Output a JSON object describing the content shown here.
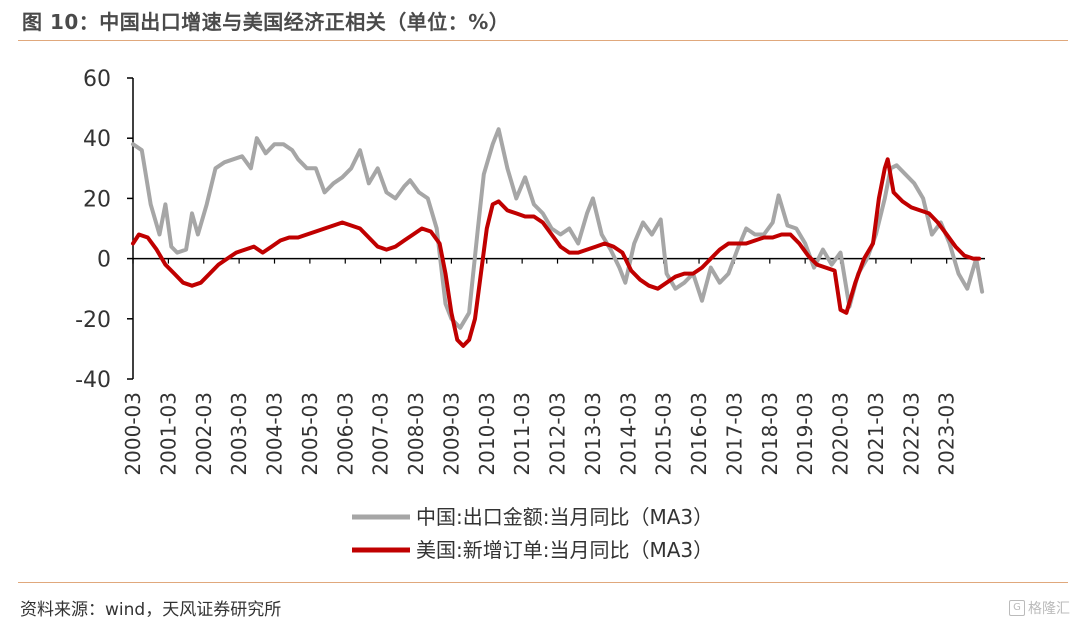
{
  "header": {
    "title": "图 10：中国出口增速与美国经济正相关（单位：%）"
  },
  "footer": {
    "source": "资料来源：wind，天风证券研究所",
    "watermark": "格隆汇",
    "watermark_icon": "G"
  },
  "colors": {
    "china": "#a6a6a6",
    "us": "#c00000",
    "rule": "#e0a87c"
  },
  "chart_data": {
    "type": "line",
    "x_type": "monthly",
    "x_start": "2000-03",
    "ylim": [
      -40,
      60
    ],
    "yticks": [
      "60",
      "40",
      "20",
      "0",
      "-20",
      "-40"
    ],
    "xticks": [
      "2000-03",
      "2001-03",
      "2002-03",
      "2003-03",
      "2004-03",
      "2005-03",
      "2006-03",
      "2007-03",
      "2008-03",
      "2009-03",
      "2010-03",
      "2011-03",
      "2012-03",
      "2013-03",
      "2014-03",
      "2015-03",
      "2016-03",
      "2017-03",
      "2018-03",
      "2019-03",
      "2020-03",
      "2021-03",
      "2022-03",
      "2023-03"
    ],
    "legend_position": "bottom",
    "series": [
      {
        "name": "中国:出口金额:当月同比（MA3）",
        "color": "#a6a6a6",
        "values": [
          [
            0,
            38
          ],
          [
            3,
            36
          ],
          [
            6,
            18
          ],
          [
            9,
            8
          ],
          [
            11,
            18
          ],
          [
            13,
            4
          ],
          [
            15,
            2
          ],
          [
            18,
            3
          ],
          [
            20,
            15
          ],
          [
            22,
            8
          ],
          [
            25,
            18
          ],
          [
            28,
            30
          ],
          [
            31,
            32
          ],
          [
            34,
            33
          ],
          [
            37,
            34
          ],
          [
            40,
            30
          ],
          [
            42,
            40
          ],
          [
            45,
            35
          ],
          [
            48,
            38
          ],
          [
            51,
            38
          ],
          [
            54,
            36
          ],
          [
            56,
            33
          ],
          [
            59,
            30
          ],
          [
            62,
            30
          ],
          [
            65,
            22
          ],
          [
            68,
            25
          ],
          [
            71,
            27
          ],
          [
            74,
            30
          ],
          [
            77,
            36
          ],
          [
            80,
            25
          ],
          [
            83,
            30
          ],
          [
            86,
            22
          ],
          [
            89,
            20
          ],
          [
            92,
            24
          ],
          [
            94,
            26
          ],
          [
            97,
            22
          ],
          [
            100,
            20
          ],
          [
            103,
            10
          ],
          [
            106,
            -15
          ],
          [
            108,
            -20
          ],
          [
            111,
            -23
          ],
          [
            114,
            -18
          ],
          [
            117,
            10
          ],
          [
            119,
            28
          ],
          [
            122,
            38
          ],
          [
            124,
            43
          ],
          [
            127,
            30
          ],
          [
            130,
            20
          ],
          [
            133,
            27
          ],
          [
            136,
            18
          ],
          [
            139,
            15
          ],
          [
            142,
            10
          ],
          [
            145,
            8
          ],
          [
            148,
            10
          ],
          [
            151,
            5
          ],
          [
            154,
            15
          ],
          [
            156,
            20
          ],
          [
            159,
            8
          ],
          [
            162,
            3
          ],
          [
            165,
            -3
          ],
          [
            167,
            -8
          ],
          [
            170,
            5
          ],
          [
            173,
            12
          ],
          [
            176,
            8
          ],
          [
            179,
            13
          ],
          [
            181,
            -5
          ],
          [
            184,
            -10
          ],
          [
            187,
            -8
          ],
          [
            190,
            -5
          ],
          [
            193,
            -14
          ],
          [
            196,
            -3
          ],
          [
            199,
            -8
          ],
          [
            202,
            -5
          ],
          [
            205,
            3
          ],
          [
            208,
            10
          ],
          [
            211,
            8
          ],
          [
            214,
            8
          ],
          [
            217,
            12
          ],
          [
            219,
            21
          ],
          [
            222,
            11
          ],
          [
            225,
            10
          ],
          [
            228,
            5
          ],
          [
            231,
            -3
          ],
          [
            234,
            3
          ],
          [
            237,
            -2
          ],
          [
            240,
            2
          ],
          [
            243,
            -16
          ],
          [
            246,
            -5
          ],
          [
            249,
            0
          ],
          [
            252,
            8
          ],
          [
            255,
            20
          ],
          [
            257,
            30
          ],
          [
            259,
            31
          ],
          [
            262,
            28
          ],
          [
            265,
            25
          ],
          [
            268,
            20
          ],
          [
            271,
            8
          ],
          [
            274,
            12
          ],
          [
            277,
            5
          ],
          [
            280,
            -5
          ],
          [
            283,
            -10
          ],
          [
            286,
            0
          ],
          [
            288,
            -11
          ]
        ]
      },
      {
        "name": "美国:新增订单:当月同比（MA3）",
        "color": "#c00000",
        "values": [
          [
            0,
            5
          ],
          [
            2,
            8
          ],
          [
            5,
            7
          ],
          [
            8,
            3
          ],
          [
            11,
            -2
          ],
          [
            14,
            -5
          ],
          [
            17,
            -8
          ],
          [
            20,
            -9
          ],
          [
            23,
            -8
          ],
          [
            26,
            -5
          ],
          [
            29,
            -2
          ],
          [
            32,
            0
          ],
          [
            35,
            2
          ],
          [
            38,
            3
          ],
          [
            41,
            4
          ],
          [
            44,
            2
          ],
          [
            47,
            4
          ],
          [
            50,
            6
          ],
          [
            53,
            7
          ],
          [
            56,
            7
          ],
          [
            59,
            8
          ],
          [
            62,
            9
          ],
          [
            65,
            10
          ],
          [
            68,
            11
          ],
          [
            71,
            12
          ],
          [
            74,
            11
          ],
          [
            77,
            10
          ],
          [
            80,
            7
          ],
          [
            83,
            4
          ],
          [
            86,
            3
          ],
          [
            89,
            4
          ],
          [
            92,
            6
          ],
          [
            95,
            8
          ],
          [
            98,
            10
          ],
          [
            101,
            9
          ],
          [
            104,
            5
          ],
          [
            106,
            -5
          ],
          [
            108,
            -18
          ],
          [
            110,
            -27
          ],
          [
            112,
            -29
          ],
          [
            114,
            -27
          ],
          [
            116,
            -20
          ],
          [
            118,
            -5
          ],
          [
            120,
            10
          ],
          [
            122,
            18
          ],
          [
            124,
            19
          ],
          [
            127,
            16
          ],
          [
            130,
            15
          ],
          [
            133,
            14
          ],
          [
            136,
            14
          ],
          [
            139,
            12
          ],
          [
            142,
            8
          ],
          [
            145,
            4
          ],
          [
            148,
            2
          ],
          [
            151,
            2
          ],
          [
            154,
            3
          ],
          [
            157,
            4
          ],
          [
            160,
            5
          ],
          [
            163,
            4
          ],
          [
            166,
            2
          ],
          [
            169,
            -4
          ],
          [
            172,
            -7
          ],
          [
            175,
            -9
          ],
          [
            178,
            -10
          ],
          [
            181,
            -8
          ],
          [
            184,
            -6
          ],
          [
            187,
            -5
          ],
          [
            190,
            -5
          ],
          [
            193,
            -3
          ],
          [
            196,
            0
          ],
          [
            199,
            3
          ],
          [
            202,
            5
          ],
          [
            205,
            5
          ],
          [
            208,
            5
          ],
          [
            211,
            6
          ],
          [
            214,
            7
          ],
          [
            217,
            7
          ],
          [
            220,
            8
          ],
          [
            223,
            8
          ],
          [
            226,
            5
          ],
          [
            229,
            1
          ],
          [
            232,
            -2
          ],
          [
            235,
            -3
          ],
          [
            238,
            -4
          ],
          [
            240,
            -17
          ],
          [
            242,
            -18
          ],
          [
            245,
            -8
          ],
          [
            248,
            0
          ],
          [
            251,
            5
          ],
          [
            253,
            20
          ],
          [
            255,
            30
          ],
          [
            256,
            33
          ],
          [
            258,
            22
          ],
          [
            261,
            19
          ],
          [
            264,
            17
          ],
          [
            267,
            16
          ],
          [
            270,
            15
          ],
          [
            273,
            12
          ],
          [
            276,
            8
          ],
          [
            279,
            4
          ],
          [
            282,
            1
          ],
          [
            285,
            0
          ],
          [
            287,
            0
          ]
        ]
      }
    ]
  }
}
